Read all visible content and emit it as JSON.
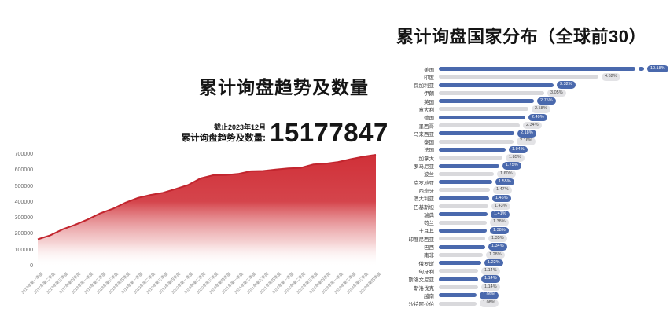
{
  "left_chart": {
    "title": "累计询盘趋势及数量",
    "stat_asof": "截止2023年12月",
    "stat_label": "累计询盘趋势及数量:",
    "stat_value": "15177847"
  },
  "right_chart": {
    "title": "累计询盘国家分布（全球前30）"
  },
  "colors": {
    "area_line": "#c2252e",
    "area_fill_top": "#d03038",
    "bar_blue": "#4a69ad",
    "bar_gray": "#d9d9dc"
  },
  "chart_data": [
    {
      "type": "area",
      "title": "累计询盘趋势及数量",
      "xlabel": "",
      "ylabel": "",
      "ylim": [
        0,
        700000
      ],
      "yticks": [
        0,
        100000,
        200000,
        300000,
        400000,
        500000,
        600000,
        700000
      ],
      "grid": false,
      "legend": "none",
      "x": [
        "2017年第一季度",
        "2017年第二季度",
        "2017年第三季度",
        "2017年第四季度",
        "2018年第一季度",
        "2018年第二季度",
        "2018年第三季度",
        "2018年第四季度",
        "2019年第一季度",
        "2019年第二季度",
        "2019年第三季度",
        "2019年第四季度",
        "2020年第一季度",
        "2020年第二季度",
        "2020年第三季度",
        "2020年第四季度",
        "2021年第一季度",
        "2021年第二季度",
        "2021年第三季度",
        "2021年第四季度",
        "2022年第一季度",
        "2022年第二季度",
        "2022年第三季度",
        "2022年第四季度",
        "2023年第一季度",
        "2023年第二季度",
        "2023年第三季度",
        "2023年第四季度"
      ],
      "values": [
        170000,
        195000,
        233000,
        262000,
        295000,
        333000,
        362000,
        400000,
        430000,
        448000,
        462000,
        485000,
        510000,
        552000,
        572000,
        573000,
        580000,
        597000,
        599000,
        608000,
        615000,
        618000,
        640000,
        645000,
        655000,
        673000,
        688000,
        700000
      ]
    },
    {
      "type": "bar",
      "orientation": "horizontal",
      "title": "累计询盘国家分布（全球前30）",
      "legend": "none",
      "truncated_first_bar": true,
      "categories": [
        "美国",
        "印度",
        "保加利亚",
        "伊朗",
        "英国",
        "意大利",
        "德国",
        "墨西哥",
        "马来西亚",
        "泰国",
        "法国",
        "加拿大",
        "罗马尼亚",
        "波兰",
        "克罗地亚",
        "西班牙",
        "澳大利亚",
        "巴基斯坦",
        "瑞典",
        "荷兰",
        "土耳其",
        "印度尼西亚",
        "巴西",
        "南非",
        "俄罗斯",
        "匈牙利",
        "斯洛文尼亚",
        "斯洛伐克",
        "越南",
        "沙特阿拉伯"
      ],
      "values": [
        10.18,
        4.62,
        3.32,
        3.05,
        2.75,
        2.58,
        2.49,
        2.34,
        2.18,
        2.16,
        1.94,
        1.85,
        1.75,
        1.6,
        1.55,
        1.47,
        1.46,
        1.43,
        1.41,
        1.38,
        1.38,
        1.35,
        1.34,
        1.28,
        1.22,
        1.14,
        1.14,
        1.14,
        1.09,
        1.08
      ],
      "value_labels": [
        "10.18%",
        "4.62%",
        "3.32%",
        "3.05%",
        "2.75%",
        "2.58%",
        "2.49%",
        "2.34%",
        "2.18%",
        "2.16%",
        "1.94%",
        "1.85%",
        "1.75%",
        "1.60%",
        "1.55%",
        "1.47%",
        "1.46%",
        "1.43%",
        "1.41%",
        "1.38%",
        "1.38%",
        "1.35%",
        "1.34%",
        "1.28%",
        "1.22%",
        "1.14%",
        "1.14%",
        "1.14%",
        "1.09%",
        "1.08%"
      ]
    }
  ]
}
